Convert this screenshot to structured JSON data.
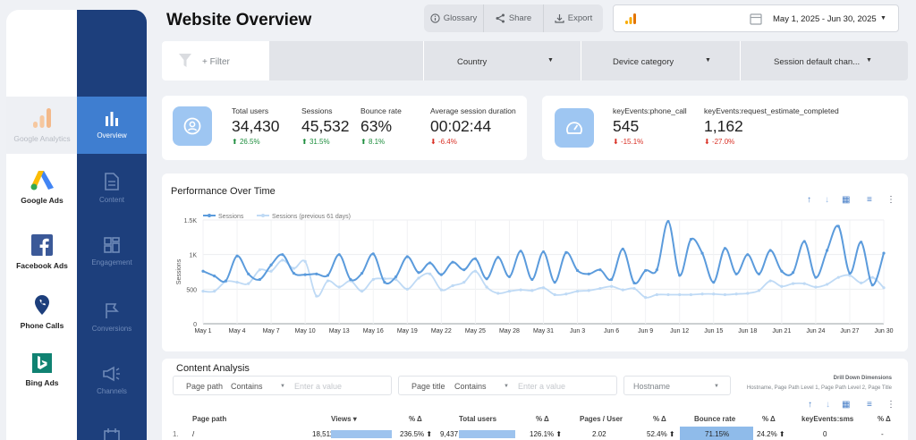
{
  "header": {
    "title": "Website Overview",
    "glossary": "Glossary",
    "share": "Share",
    "export": "Export",
    "date_range": "May 1, 2025 - Jun 30, 2025"
  },
  "sources": [
    {
      "label": "Google Analytics",
      "icon": "google-analytics-icon"
    },
    {
      "label": "Google Ads",
      "icon": "google-ads-icon"
    },
    {
      "label": "Facebook Ads",
      "icon": "facebook-icon"
    },
    {
      "label": "Phone Calls",
      "icon": "phone-pin-icon"
    },
    {
      "label": "Bing Ads",
      "icon": "bing-icon"
    }
  ],
  "nav": [
    {
      "label": "Overview",
      "icon": "bar-chart-icon"
    },
    {
      "label": "Content",
      "icon": "document-icon"
    },
    {
      "label": "Engagement",
      "icon": "dashboard-grid-icon"
    },
    {
      "label": "Conversions",
      "icon": "flag-icon"
    },
    {
      "label": "Channels",
      "icon": "megaphone-icon"
    }
  ],
  "filters": {
    "filter_label": "+ Filter",
    "country": "Country",
    "device": "Device category",
    "channel": "Session default chan..."
  },
  "kpis": [
    {
      "label": "Total users",
      "value": "34,430",
      "delta": "26.5%",
      "dir": "up"
    },
    {
      "label": "Sessions",
      "value": "45,532",
      "delta": "31.5%",
      "dir": "up"
    },
    {
      "label": "Bounce rate",
      "value": "63%",
      "delta": "8.1%",
      "dir": "up"
    },
    {
      "label": "Average session duration",
      "value": "00:02:44",
      "delta": "-6.4%",
      "dir": "down"
    }
  ],
  "key_events": [
    {
      "label": "keyEvents:phone_call",
      "value": "545",
      "delta": "-15.1%",
      "dir": "down"
    },
    {
      "label": "keyEvents:request_estimate_completed",
      "value": "1,162",
      "delta": "-27.0%",
      "dir": "down"
    }
  ],
  "arrows": {
    "up": "⬆",
    "down": "⬇"
  },
  "chart_data": {
    "type": "line",
    "title": "Performance Over Time",
    "ylabel": "Sessions",
    "ylim": [
      0,
      1500
    ],
    "y_ticks": [
      "0",
      "500",
      "1K",
      "1.5K"
    ],
    "x_tick_labels": [
      "May 1",
      "May 4",
      "May 7",
      "May 10",
      "May 13",
      "May 16",
      "May 19",
      "May 22",
      "May 25",
      "May 28",
      "May 31",
      "Jun 3",
      "Jun 6",
      "Jun 9",
      "Jun 12",
      "Jun 15",
      "Jun 18",
      "Jun 21",
      "Jun 24",
      "Jun 27",
      "Jun 30"
    ],
    "series": [
      {
        "name": "Sessions",
        "color": "#5b9bdc",
        "values": [
          760,
          690,
          620,
          980,
          720,
          640,
          850,
          1000,
          730,
          710,
          720,
          700,
          1000,
          640,
          730,
          1010,
          600,
          680,
          970,
          740,
          880,
          710,
          890,
          780,
          940,
          650,
          960,
          680,
          1050,
          640,
          1040,
          600,
          1030,
          770,
          720,
          780,
          640,
          1080,
          590,
          770,
          780,
          1480,
          700,
          1220,
          1020,
          600,
          1090,
          720,
          1000,
          720,
          1060,
          760,
          740,
          1190,
          670,
          1060,
          1410,
          730,
          1180,
          560,
          1020
        ]
      },
      {
        "name": "Sessions (previous 61 days)",
        "color": "#bfdaf5",
        "values": [
          470,
          470,
          610,
          600,
          580,
          780,
          760,
          920,
          800,
          900,
          400,
          620,
          530,
          620,
          470,
          640,
          650,
          640,
          500,
          660,
          720,
          490,
          550,
          600,
          760,
          530,
          440,
          470,
          490,
          480,
          520,
          420,
          430,
          470,
          480,
          510,
          540,
          490,
          510,
          380,
          420,
          420,
          420,
          420,
          430,
          430,
          420,
          430,
          440,
          480,
          620,
          540,
          580,
          580,
          530,
          570,
          670,
          700,
          590,
          670,
          520
        ]
      }
    ]
  },
  "content_analysis": {
    "title": "Content Analysis",
    "page_path_label": "Page path",
    "contains": "Contains",
    "enter_value": "Enter a value",
    "page_title_label": "Page title",
    "hostname": "Hostname",
    "drill_title": "Drill Down Dimensions",
    "drill_sub": "Hostname, Page Path Level 1, Page Path Level 2, Page Title",
    "columns": [
      "Page path",
      "Views ▾",
      "% Δ",
      "Total users",
      "% Δ",
      "Pages / User",
      "% Δ",
      "Bounce rate",
      "% Δ",
      "keyEvents:sms",
      "% Δ"
    ],
    "row": {
      "index": "1.",
      "path": "/",
      "views": "18,511",
      "views_delta": "236.5% ⬆",
      "users": "9,437",
      "users_delta": "126.1% ⬆",
      "ppu": "2.02",
      "ppu_delta": "52.4% ⬆",
      "bounce": "71.15%",
      "bounce_delta": "24.2% ⬆",
      "sms": "0",
      "sms_delta": "-"
    }
  }
}
